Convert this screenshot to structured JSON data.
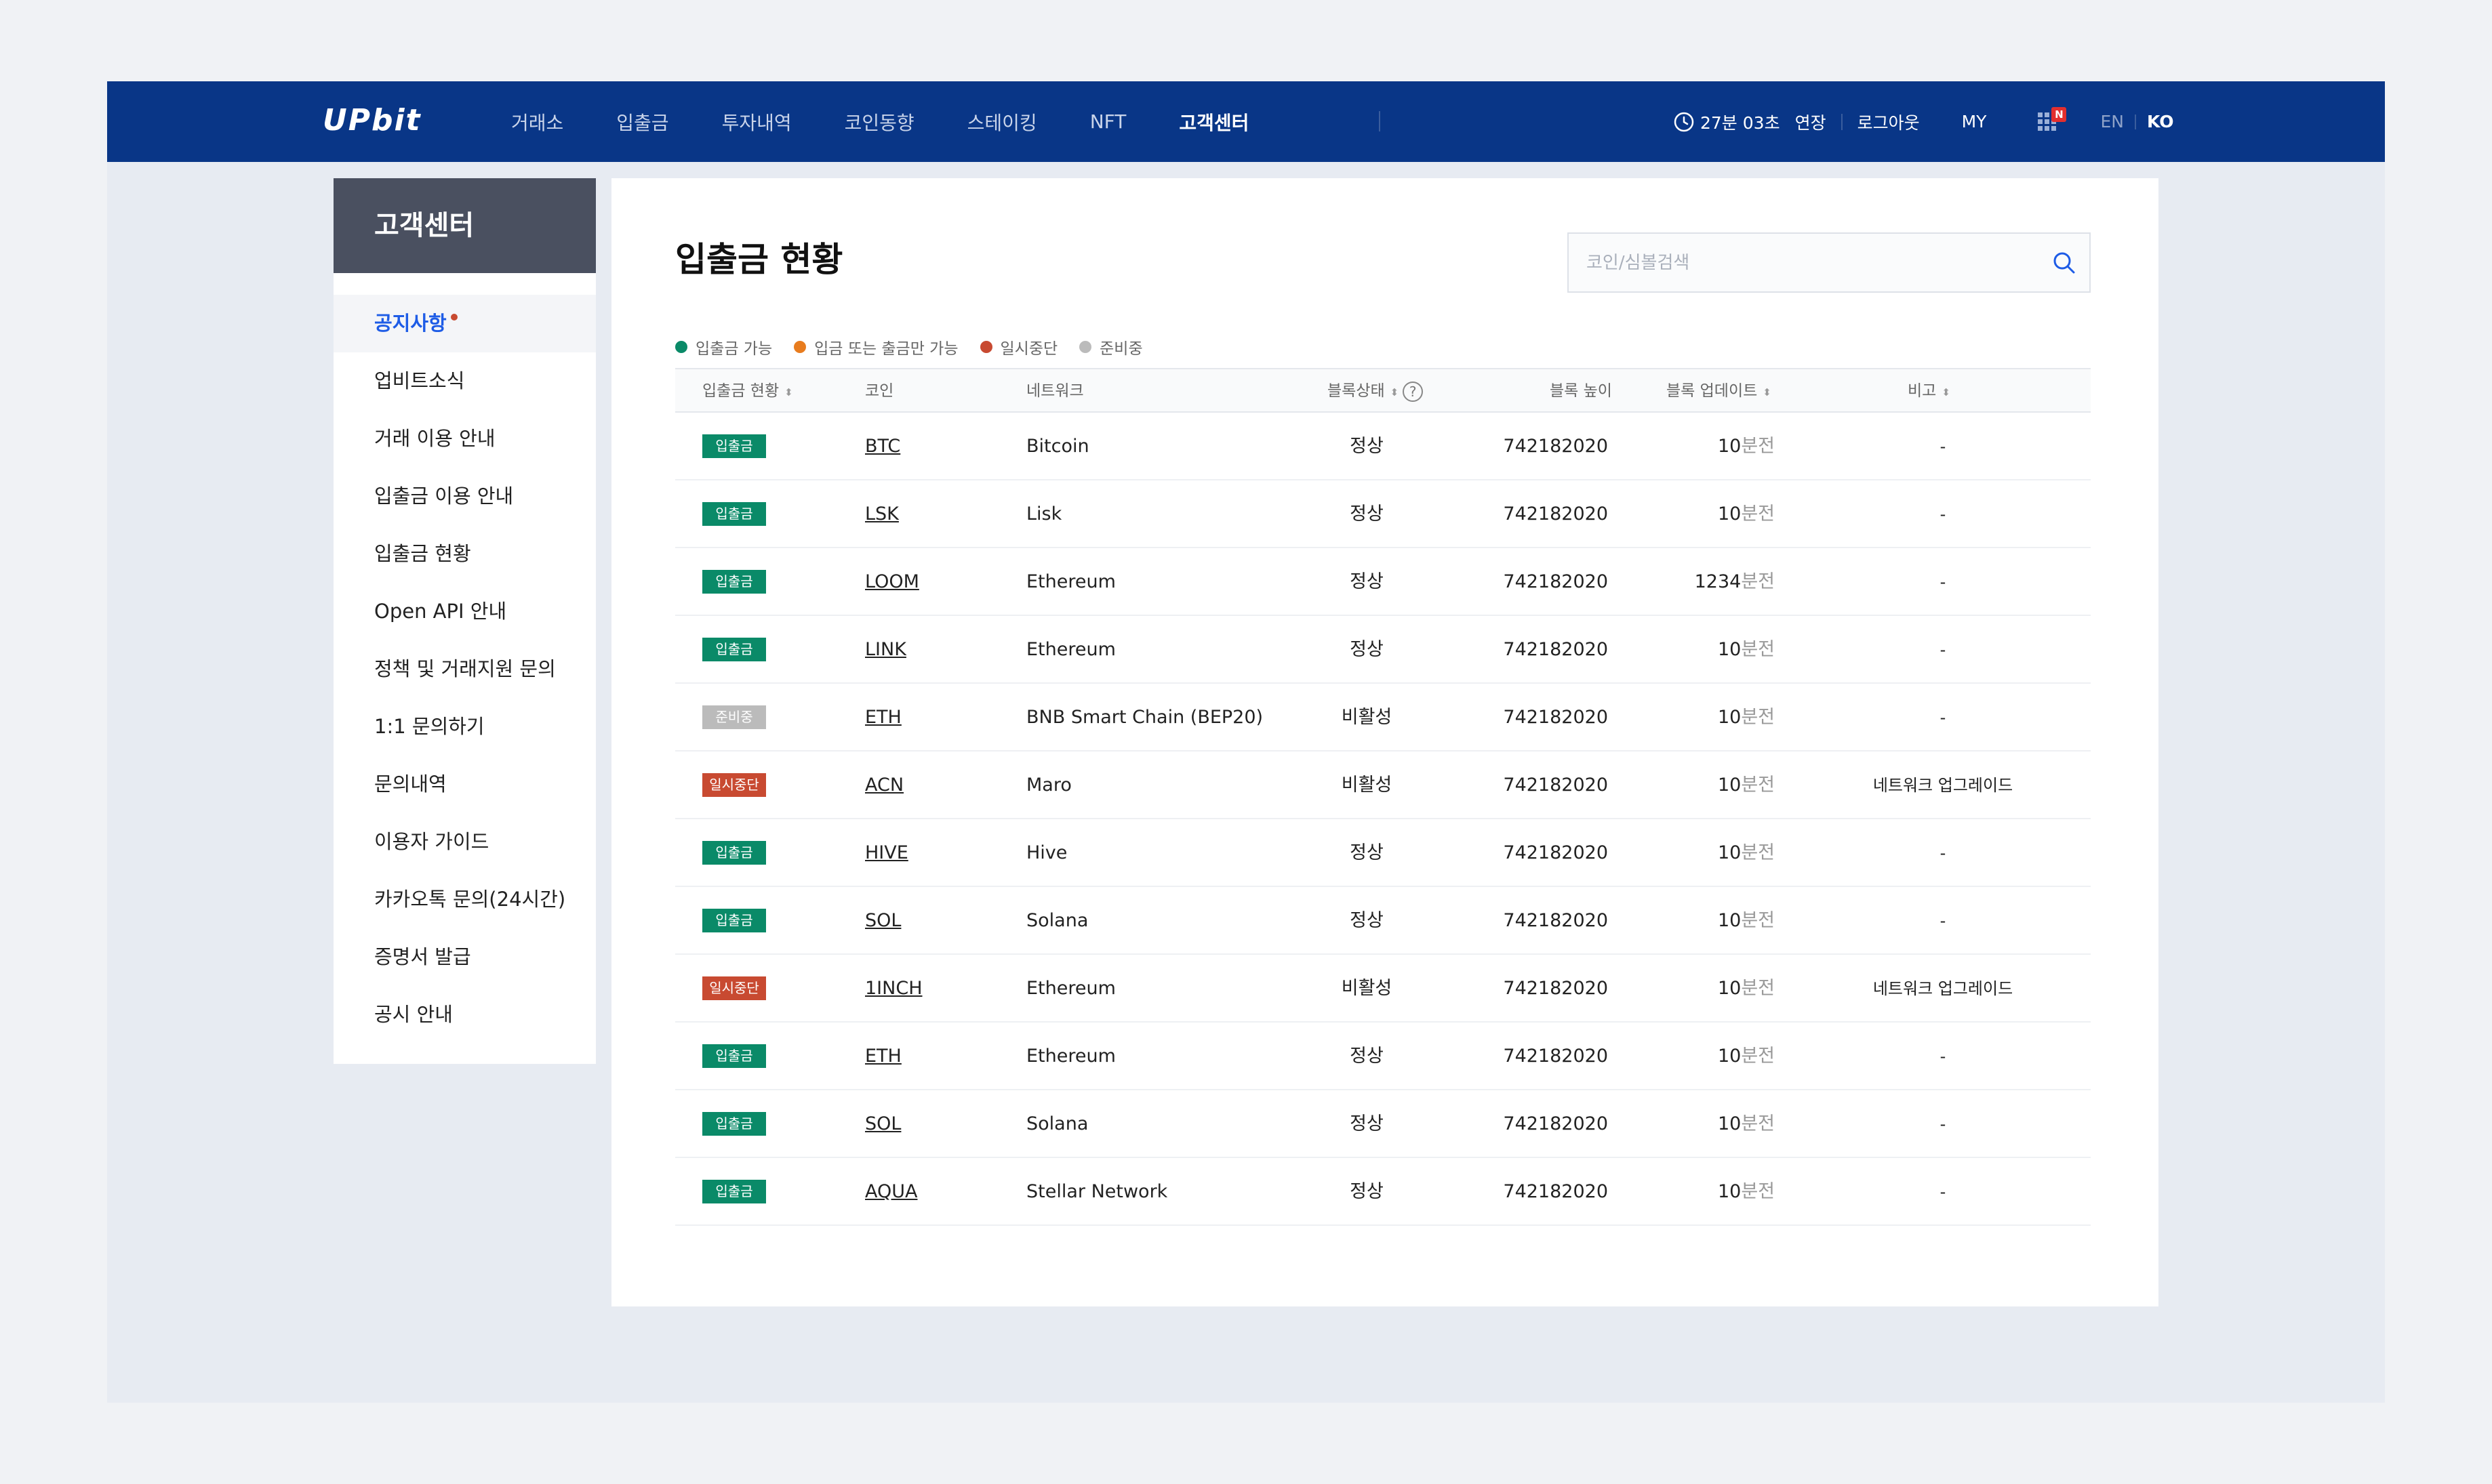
{
  "header": {
    "logo": "UPbit",
    "menu": [
      {
        "label": "거래소",
        "active": false
      },
      {
        "label": "입출금",
        "active": false
      },
      {
        "label": "투자내역",
        "active": false
      },
      {
        "label": "코인동향",
        "active": false
      },
      {
        "label": "스테이킹",
        "active": false
      },
      {
        "label": "NFT",
        "active": false
      },
      {
        "label": "고객센터",
        "active": true
      }
    ],
    "session_timer": "27분 03초",
    "extend_label": "연장",
    "logout_label": "로그아웃",
    "my_label": "MY",
    "apps_badge": "N",
    "lang_en": "EN",
    "lang_ko": "KO",
    "brand_color": "#093687"
  },
  "sidebar": {
    "title": "고객센터",
    "items": [
      {
        "label": "공지사항",
        "active": true,
        "new_dot": true
      },
      {
        "label": "업비트소식"
      },
      {
        "label": "거래 이용 안내"
      },
      {
        "label": "입출금 이용 안내"
      },
      {
        "label": "입출금 현황"
      },
      {
        "label": "Open API 안내"
      },
      {
        "label": "정책 및 거래지원 문의"
      },
      {
        "label": "1:1 문의하기"
      },
      {
        "label": "문의내역"
      },
      {
        "label": "이용자 가이드"
      },
      {
        "label": "카카오톡 문의(24시간)"
      },
      {
        "label": "증명서 발급"
      },
      {
        "label": "공시 안내"
      }
    ]
  },
  "main": {
    "title": "입출금 현황",
    "search_placeholder": "코인/심볼검색",
    "legend": [
      {
        "label": "입출금 가능",
        "color": "#0a8a68"
      },
      {
        "label": "입금 또는 출금만 가능",
        "color": "#e87c1e"
      },
      {
        "label": "일시중단",
        "color": "#c84a31"
      },
      {
        "label": "준비중",
        "color": "#bbbbbb"
      }
    ],
    "columns": {
      "status": "입출금 현황",
      "coin": "코인",
      "network": "네트워크",
      "block_state": "블록상태",
      "block_height": "블록 높이",
      "block_update": "블록 업데이트",
      "note": "비고"
    },
    "ago_suffix": "분전",
    "rows": [
      {
        "status": "입출금",
        "status_color": "#0a8a68",
        "coin": "BTC",
        "network": "Bitcoin",
        "block_state": "정상",
        "height": "742182020",
        "update": "10",
        "note": "-"
      },
      {
        "status": "입출금",
        "status_color": "#0a8a68",
        "coin": "LSK",
        "network": "Lisk",
        "block_state": "정상",
        "height": "742182020",
        "update": "10",
        "note": "-"
      },
      {
        "status": "입출금",
        "status_color": "#0a8a68",
        "coin": "LOOM",
        "network": "Ethereum",
        "block_state": "정상",
        "height": "742182020",
        "update": "1234",
        "note": "-"
      },
      {
        "status": "입출금",
        "status_color": "#0a8a68",
        "coin": "LINK",
        "network": "Ethereum",
        "block_state": "정상",
        "height": "742182020",
        "update": "10",
        "note": "-"
      },
      {
        "status": "준비중",
        "status_color": "#bbbbbb",
        "coin": "ETH",
        "network": "BNB Smart Chain (BEP20)",
        "block_state": "비활성",
        "height": "742182020",
        "update": "10",
        "note": "-"
      },
      {
        "status": "일시중단",
        "status_color": "#c84a31",
        "coin": "ACN",
        "network": "Maro",
        "block_state": "비활성",
        "height": "742182020",
        "update": "10",
        "note": "네트워크 업그레이드"
      },
      {
        "status": "입출금",
        "status_color": "#0a8a68",
        "coin": "HIVE",
        "network": "Hive",
        "block_state": "정상",
        "height": "742182020",
        "update": "10",
        "note": "-"
      },
      {
        "status": "입출금",
        "status_color": "#0a8a68",
        "coin": "SOL",
        "network": "Solana",
        "block_state": "정상",
        "height": "742182020",
        "update": "10",
        "note": "-"
      },
      {
        "status": "일시중단",
        "status_color": "#c84a31",
        "coin": "1INCH",
        "network": "Ethereum",
        "block_state": "비활성",
        "height": "742182020",
        "update": "10",
        "note": "네트워크 업그레이드"
      },
      {
        "status": "입출금",
        "status_color": "#0a8a68",
        "coin": "ETH",
        "network": "Ethereum",
        "block_state": "정상",
        "height": "742182020",
        "update": "10",
        "note": "-"
      },
      {
        "status": "입출금",
        "status_color": "#0a8a68",
        "coin": "SOL",
        "network": "Solana",
        "block_state": "정상",
        "height": "742182020",
        "update": "10",
        "note": "-"
      },
      {
        "status": "입출금",
        "status_color": "#0a8a68",
        "coin": "AQUA",
        "network": "Stellar Network",
        "block_state": "정상",
        "height": "742182020",
        "update": "10",
        "note": "-"
      }
    ]
  }
}
